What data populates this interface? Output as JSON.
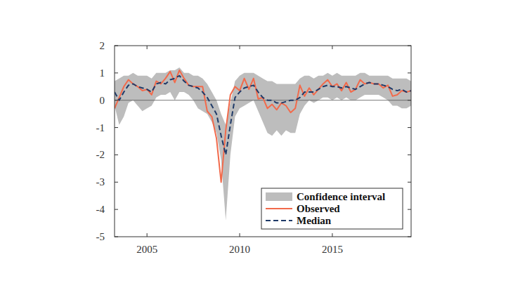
{
  "chart_data": {
    "type": "line",
    "x": [
      2003.25,
      2003.5,
      2003.75,
      2004.0,
      2004.25,
      2004.5,
      2004.75,
      2005.0,
      2005.25,
      2005.5,
      2005.75,
      2006.0,
      2006.25,
      2006.5,
      2006.75,
      2007.0,
      2007.25,
      2007.5,
      2007.75,
      2008.0,
      2008.25,
      2008.5,
      2008.75,
      2009.0,
      2009.25,
      2009.5,
      2009.75,
      2010.0,
      2010.25,
      2010.5,
      2010.75,
      2011.0,
      2011.25,
      2011.5,
      2011.75,
      2012.0,
      2012.25,
      2012.5,
      2012.75,
      2013.0,
      2013.25,
      2013.5,
      2013.75,
      2014.0,
      2014.25,
      2014.5,
      2014.75,
      2015.0,
      2015.25,
      2015.5,
      2015.75,
      2016.0,
      2016.25,
      2016.5,
      2016.75,
      2017.0,
      2017.25,
      2017.5,
      2017.75,
      2018.0,
      2018.25,
      2018.5,
      2018.75,
      2019.0,
      2019.25
    ],
    "series": [
      {
        "name": "Confidence interval",
        "type": "band",
        "color": "#bdbdbd",
        "lower": [
          -0.2,
          -0.9,
          -0.6,
          -0.1,
          0.0,
          -0.2,
          -0.4,
          -0.3,
          -0.2,
          0.1,
          0.2,
          0.2,
          0.3,
          0.0,
          0.3,
          0.3,
          0.2,
          0.0,
          -0.3,
          -0.4,
          -0.5,
          -0.8,
          -1.2,
          -2.2,
          -4.4,
          -2.0,
          -0.6,
          -0.3,
          -0.2,
          -0.1,
          0.0,
          -0.4,
          -0.8,
          -1.2,
          -1.3,
          -1.1,
          -1.3,
          -1.1,
          -1.2,
          -1.2,
          -0.5,
          -0.2,
          0.0,
          -0.1,
          0.0,
          0.1,
          0.1,
          0.0,
          0.1,
          0.0,
          0.1,
          0.0,
          0.0,
          0.1,
          0.2,
          0.2,
          0.2,
          0.2,
          0.1,
          0.0,
          -0.2,
          -0.2,
          -0.3,
          -0.3,
          -0.2
        ],
        "upper": [
          0.7,
          0.8,
          0.9,
          0.9,
          1.0,
          0.9,
          0.9,
          0.9,
          0.8,
          1.0,
          1.0,
          1.0,
          1.1,
          1.1,
          1.2,
          1.0,
          1.0,
          0.9,
          0.9,
          0.8,
          0.6,
          0.3,
          0.0,
          -0.5,
          -0.9,
          -0.1,
          0.7,
          0.9,
          1.0,
          1.0,
          1.0,
          0.9,
          0.8,
          0.7,
          0.7,
          0.6,
          0.6,
          0.6,
          0.6,
          0.6,
          0.8,
          0.9,
          0.9,
          0.8,
          0.9,
          0.9,
          1.0,
          0.9,
          1.0,
          0.9,
          0.9,
          0.9,
          0.9,
          1.0,
          1.0,
          0.9,
          0.9,
          0.9,
          0.9,
          0.9,
          0.8,
          0.8,
          0.8,
          0.8,
          0.7
        ]
      },
      {
        "name": "Observed",
        "type": "line",
        "color": "#f26a4b",
        "line_style": "solid",
        "values": [
          -0.3,
          0.1,
          0.5,
          0.75,
          0.6,
          0.5,
          0.35,
          0.4,
          0.2,
          0.7,
          0.6,
          0.8,
          1.05,
          0.65,
          1.1,
          0.8,
          0.55,
          0.5,
          0.5,
          0.5,
          -0.4,
          -0.6,
          -1.4,
          -3.0,
          -1.1,
          0.2,
          0.5,
          0.35,
          0.8,
          0.4,
          0.8,
          0.05,
          0.1,
          -0.3,
          -0.15,
          -0.35,
          -0.1,
          -0.2,
          -0.45,
          -0.3,
          0.55,
          0.15,
          0.45,
          0.2,
          0.4,
          0.6,
          0.75,
          0.5,
          0.6,
          0.35,
          0.65,
          0.3,
          0.4,
          0.75,
          0.6,
          0.65,
          0.6,
          0.6,
          0.45,
          0.55,
          0.15,
          0.2,
          0.35,
          0.3,
          0.35
        ]
      },
      {
        "name": "Median",
        "type": "line",
        "color": "#1f3a68",
        "line_style": "dashed",
        "values": [
          0.3,
          0.0,
          0.3,
          0.55,
          0.6,
          0.5,
          0.45,
          0.4,
          0.3,
          0.6,
          0.65,
          0.6,
          0.75,
          0.8,
          0.9,
          0.7,
          0.55,
          0.5,
          0.45,
          0.3,
          0.1,
          -0.2,
          -0.5,
          -1.3,
          -2.0,
          -0.9,
          0.1,
          0.3,
          0.45,
          0.5,
          0.55,
          0.3,
          0.1,
          0.0,
          0.0,
          -0.1,
          -0.1,
          -0.05,
          0.0,
          0.0,
          0.1,
          0.3,
          0.3,
          0.3,
          0.4,
          0.5,
          0.55,
          0.5,
          0.5,
          0.45,
          0.5,
          0.45,
          0.4,
          0.5,
          0.6,
          0.65,
          0.6,
          0.6,
          0.55,
          0.5,
          0.4,
          0.35,
          0.4,
          0.3,
          0.35
        ]
      }
    ],
    "xlim": [
      2003.25,
      2019.25
    ],
    "xticks": [
      2005,
      2010,
      2015
    ],
    "ylim": [
      -5,
      2
    ],
    "yticks": [
      -5,
      -4,
      -3,
      -2,
      -1,
      0,
      1,
      2
    ],
    "hline": 0,
    "grid": false,
    "legend": "lower right"
  }
}
